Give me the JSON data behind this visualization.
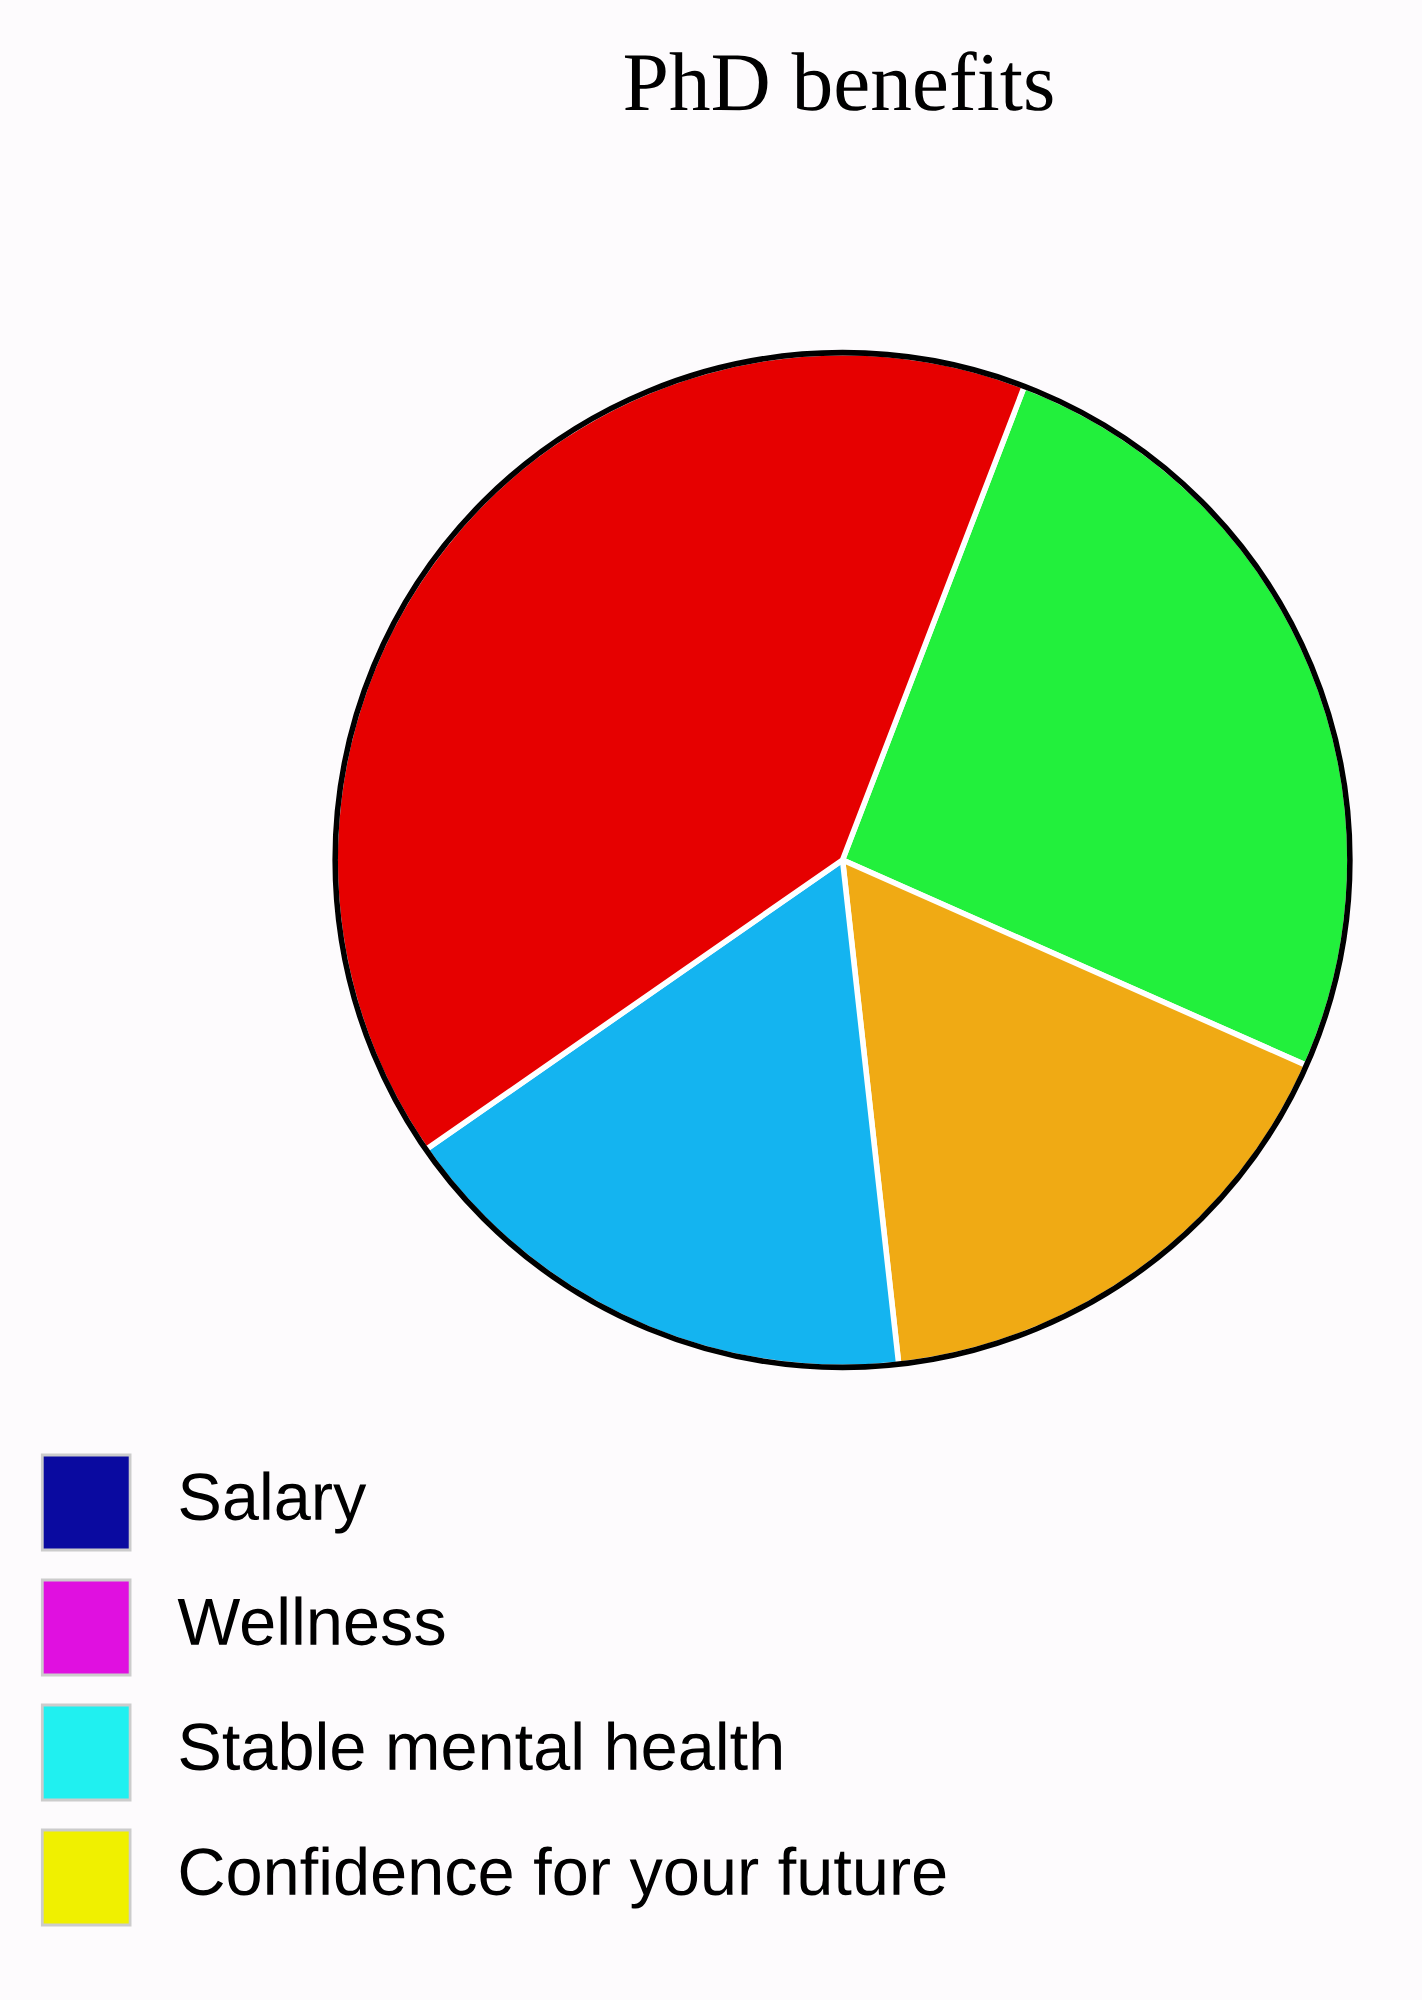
{
  "chart_data": [
    {
      "type": "pie",
      "title": "PhD benefits",
      "categories": [
        null,
        null,
        null,
        null
      ],
      "values": [
        25.8,
        16.6,
        17.1,
        40.5
      ],
      "colors": [
        "#22f03c",
        "#f0aa14",
        "#14b4f0",
        "#e60000"
      ]
    },
    {
      "type": "other",
      "categories": [
        "Salary",
        "Wellness",
        "Stable mental health",
        "Confidence for your future"
      ],
      "colors": [
        "#0a0aa0",
        "#e010e0",
        "#20f0f0",
        "#f0f000"
      ]
    }
  ]
}
